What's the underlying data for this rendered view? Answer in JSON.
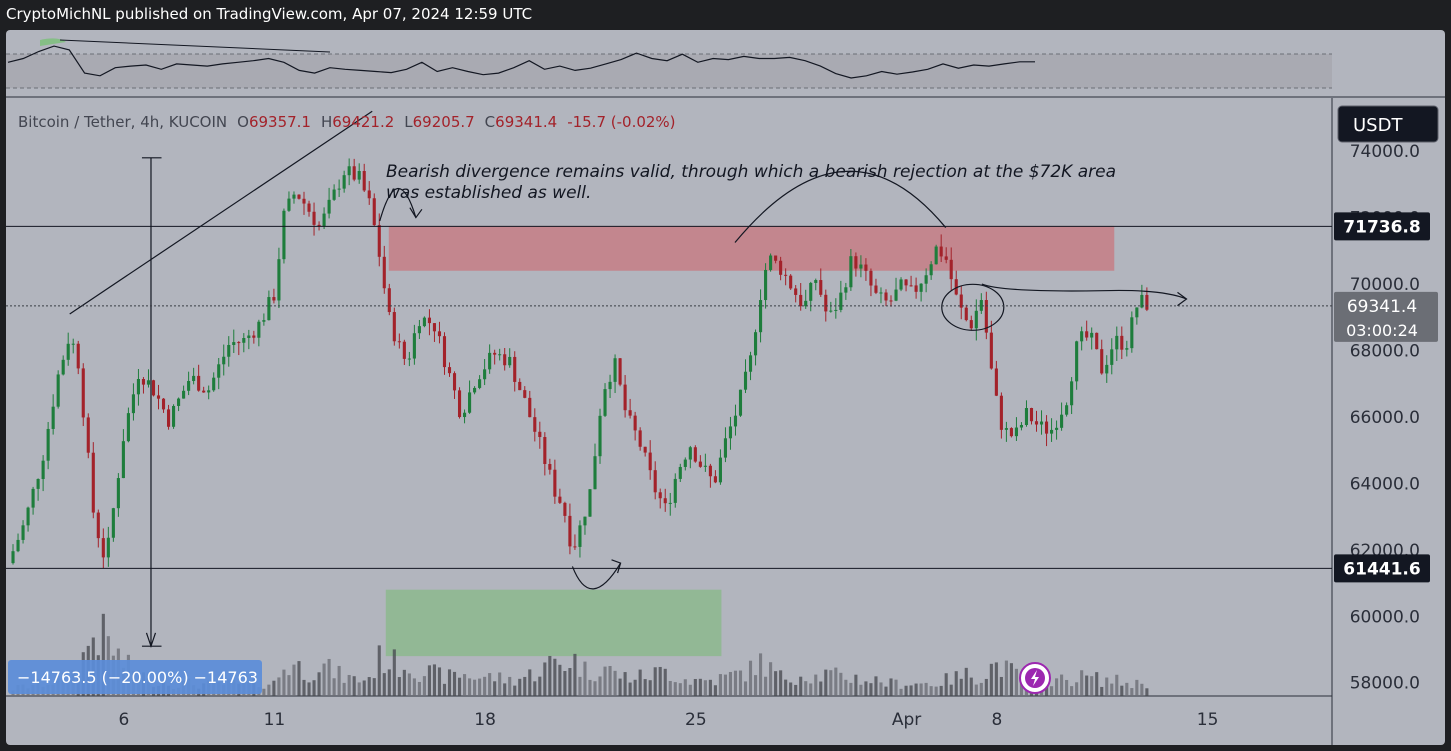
{
  "header": {
    "publish_info": "CryptoMichNL published on TradingView.com, Apr 07, 2024 12:59 UTC"
  },
  "legend": {
    "symbol": "Bitcoin / Tether, 4h, KUCOIN",
    "open_label": "O",
    "open": "69357.1",
    "high_label": "H",
    "high": "69421.2",
    "low_label": "L",
    "low": "69205.7",
    "close_label": "C",
    "close": "69341.4",
    "change": "-15.7 (-0.02%)"
  },
  "currency_button": "USDT",
  "annotation": "Bearish divergence remains valid, through which a bearish rejection at the $72K area was established as well.",
  "measure_label": "−14763.5 (−20.00%) −14763",
  "colors": {
    "background": "#b2b5be",
    "up": "#1e7d3c",
    "down": "#a3222a",
    "resistance_zone": "#c67e86",
    "support_zone": "#8cb88e",
    "label_bg": "#131722",
    "measure_bg": "#5b8dd9",
    "widget_icon": "#9c27b0"
  },
  "icons": {
    "widget": "lightning-icon"
  },
  "price_labels": {
    "resistance": "71736.8",
    "support": "61441.6",
    "last_price": "69341.4",
    "countdown": "03:00:24"
  },
  "chart_data": [
    {
      "type": "candlestick",
      "symbol": "Bitcoin / Tether",
      "interval": "4h",
      "exchange": "KUCOIN",
      "currency": "USDT",
      "y_ticks": [
        "58000.0",
        "60000.0",
        "62000.0",
        "64000.0",
        "66000.0",
        "68000.0",
        "70000.0",
        "72000.0",
        "74000.0"
      ],
      "x_ticks": [
        {
          "label": "6",
          "day": 6
        },
        {
          "label": "11",
          "day": 11
        },
        {
          "label": "18",
          "day": 18
        },
        {
          "label": "25",
          "day": 25
        },
        {
          "label": "Apr",
          "day": 32
        },
        {
          "label": "8",
          "day": 35
        },
        {
          "label": "15",
          "day": 42
        }
      ],
      "x_range": [
        2.15,
        46.0
      ],
      "y_range": [
        57600,
        75600
      ],
      "horizontal_levels": [
        {
          "label": "resistance",
          "price": 71736.8
        },
        {
          "label": "support",
          "price": 61441.6
        },
        {
          "label": "last_price",
          "price": 69341.4
        }
      ],
      "zones": [
        {
          "label": "resistance-zone",
          "day_from": 14.8,
          "day_to": 38.9,
          "price_from": 70400,
          "price_to": 71750
        },
        {
          "label": "support-zone",
          "day_from": 14.7,
          "day_to": 25.85,
          "price_from": 58800,
          "price_to": 60800
        }
      ],
      "path": [
        {
          "day": 2.15,
          "close": 61600,
          "vol": 0.1
        },
        {
          "day": 2.7,
          "close": 62800,
          "vol": 0.15
        },
        {
          "day": 3.3,
          "close": 64800,
          "vol": 0.2
        },
        {
          "day": 3.8,
          "close": 67200,
          "vol": 0.25
        },
        {
          "day": 4.2,
          "close": 68500,
          "vol": 0.3
        },
        {
          "day": 4.5,
          "close": 67600,
          "vol": 0.45
        },
        {
          "day": 5.0,
          "close": 63000,
          "vol": 1.0
        },
        {
          "day": 5.4,
          "close": 61600,
          "vol": 0.9
        },
        {
          "day": 6.0,
          "close": 65500,
          "vol": 0.5
        },
        {
          "day": 6.5,
          "close": 67400,
          "vol": 0.35
        },
        {
          "day": 7.0,
          "close": 66800,
          "vol": 0.25
        },
        {
          "day": 7.5,
          "close": 65900,
          "vol": 0.2
        },
        {
          "day": 8.2,
          "close": 67200,
          "vol": 0.2
        },
        {
          "day": 8.8,
          "close": 66800,
          "vol": 0.18
        },
        {
          "day": 9.5,
          "close": 68200,
          "vol": 0.2
        },
        {
          "day": 10.0,
          "close": 68300,
          "vol": 0.18
        },
        {
          "day": 10.5,
          "close": 68800,
          "vol": 0.2
        },
        {
          "day": 11.0,
          "close": 69700,
          "vol": 0.2
        },
        {
          "day": 11.3,
          "close": 72000,
          "vol": 0.45
        },
        {
          "day": 11.7,
          "close": 72800,
          "vol": 0.5
        },
        {
          "day": 12.1,
          "close": 72300,
          "vol": 0.35
        },
        {
          "day": 12.5,
          "close": 71700,
          "vol": 0.5
        },
        {
          "day": 12.9,
          "close": 72500,
          "vol": 0.4
        },
        {
          "day": 13.3,
          "close": 73400,
          "vol": 0.3
        },
        {
          "day": 13.8,
          "close": 73200,
          "vol": 0.25
        },
        {
          "day": 14.2,
          "close": 72300,
          "vol": 0.3
        },
        {
          "day": 14.5,
          "close": 70800,
          "vol": 0.6
        },
        {
          "day": 14.8,
          "close": 69000,
          "vol": 0.55
        },
        {
          "day": 15.1,
          "close": 68200,
          "vol": 0.5
        },
        {
          "day": 15.4,
          "close": 67600,
          "vol": 0.5
        },
        {
          "day": 15.8,
          "close": 69000,
          "vol": 0.4
        },
        {
          "day": 16.3,
          "close": 68800,
          "vol": 0.35
        },
        {
          "day": 16.8,
          "close": 67300,
          "vol": 0.3
        },
        {
          "day": 17.2,
          "close": 66100,
          "vol": 0.35
        },
        {
          "day": 17.7,
          "close": 67200,
          "vol": 0.3
        },
        {
          "day": 18.3,
          "close": 67900,
          "vol": 0.3
        },
        {
          "day": 18.8,
          "close": 67700,
          "vol": 0.25
        },
        {
          "day": 19.3,
          "close": 66500,
          "vol": 0.3
        },
        {
          "day": 19.8,
          "close": 65200,
          "vol": 0.4
        },
        {
          "day": 20.3,
          "close": 63800,
          "vol": 0.55
        },
        {
          "day": 20.6,
          "close": 63300,
          "vol": 0.5
        },
        {
          "day": 20.9,
          "close": 62000,
          "vol": 0.6
        },
        {
          "day": 21.2,
          "close": 62800,
          "vol": 0.45
        },
        {
          "day": 21.5,
          "close": 63800,
          "vol": 0.35
        },
        {
          "day": 21.9,
          "close": 66800,
          "vol": 0.5
        },
        {
          "day": 22.3,
          "close": 67600,
          "vol": 0.35
        },
        {
          "day": 22.7,
          "close": 66000,
          "vol": 0.3
        },
        {
          "day": 23.1,
          "close": 65300,
          "vol": 0.3
        },
        {
          "day": 23.6,
          "close": 63900,
          "vol": 0.35
        },
        {
          "day": 24.0,
          "close": 63200,
          "vol": 0.4
        },
        {
          "day": 24.4,
          "close": 64400,
          "vol": 0.3
        },
        {
          "day": 24.8,
          "close": 65200,
          "vol": 0.25
        },
        {
          "day": 25.2,
          "close": 64500,
          "vol": 0.25
        },
        {
          "day": 25.6,
          "close": 64000,
          "vol": 0.25
        },
        {
          "day": 26.0,
          "close": 65300,
          "vol": 0.3
        },
        {
          "day": 26.4,
          "close": 66300,
          "vol": 0.35
        },
        {
          "day": 26.8,
          "close": 67600,
          "vol": 0.4
        },
        {
          "day": 27.1,
          "close": 69500,
          "vol": 0.55
        },
        {
          "day": 27.4,
          "close": 70800,
          "vol": 0.45
        },
        {
          "day": 27.8,
          "close": 70500,
          "vol": 0.3
        },
        {
          "day": 28.2,
          "close": 69900,
          "vol": 0.3
        },
        {
          "day": 28.6,
          "close": 69300,
          "vol": 0.35
        },
        {
          "day": 29.0,
          "close": 70200,
          "vol": 0.3
        },
        {
          "day": 29.4,
          "close": 68900,
          "vol": 0.35
        },
        {
          "day": 29.8,
          "close": 69600,
          "vol": 0.3
        },
        {
          "day": 30.2,
          "close": 70800,
          "vol": 0.3
        },
        {
          "day": 30.6,
          "close": 70300,
          "vol": 0.25
        },
        {
          "day": 31.0,
          "close": 69600,
          "vol": 0.25
        },
        {
          "day": 31.4,
          "close": 69400,
          "vol": 0.2
        },
        {
          "day": 31.8,
          "close": 69900,
          "vol": 0.2
        },
        {
          "day": 32.2,
          "close": 69700,
          "vol": 0.2
        },
        {
          "day": 32.6,
          "close": 70300,
          "vol": 0.2
        },
        {
          "day": 33.0,
          "close": 71100,
          "vol": 0.2
        },
        {
          "day": 33.3,
          "close": 70800,
          "vol": 0.25
        },
        {
          "day": 33.7,
          "close": 69400,
          "vol": 0.3
        },
        {
          "day": 34.1,
          "close": 68700,
          "vol": 0.35
        },
        {
          "day": 34.5,
          "close": 69600,
          "vol": 0.3
        },
        {
          "day": 34.9,
          "close": 66800,
          "vol": 0.5
        },
        {
          "day": 35.2,
          "close": 65600,
          "vol": 0.45
        },
        {
          "day": 35.6,
          "close": 65400,
          "vol": 0.35
        },
        {
          "day": 36.0,
          "close": 66100,
          "vol": 0.3
        },
        {
          "day": 36.4,
          "close": 65700,
          "vol": 0.3
        },
        {
          "day": 36.8,
          "close": 65600,
          "vol": 0.25
        },
        {
          "day": 37.3,
          "close": 66500,
          "vol": 0.25
        },
        {
          "day": 37.7,
          "close": 68300,
          "vol": 0.3
        },
        {
          "day": 38.1,
          "close": 68400,
          "vol": 0.3
        },
        {
          "day": 38.5,
          "close": 67400,
          "vol": 0.25
        },
        {
          "day": 38.9,
          "close": 68300,
          "vol": 0.25
        },
        {
          "day": 39.3,
          "close": 68200,
          "vol": 0.2
        },
        {
          "day": 39.7,
          "close": 69500,
          "vol": 0.2
        },
        {
          "day": 40.0,
          "close": 69400,
          "vol": 0.2
        }
      ],
      "rsi": [
        0.55,
        0.62,
        0.75,
        0.85,
        0.78,
        0.35,
        0.3,
        0.45,
        0.48,
        0.5,
        0.42,
        0.52,
        0.5,
        0.48,
        0.52,
        0.55,
        0.58,
        0.62,
        0.55,
        0.4,
        0.35,
        0.45,
        0.42,
        0.4,
        0.38,
        0.36,
        0.42,
        0.55,
        0.38,
        0.45,
        0.38,
        0.32,
        0.35,
        0.45,
        0.58,
        0.42,
        0.48,
        0.4,
        0.44,
        0.52,
        0.6,
        0.72,
        0.62,
        0.58,
        0.7,
        0.55,
        0.62,
        0.6,
        0.66,
        0.62,
        0.62,
        0.64,
        0.58,
        0.48,
        0.34,
        0.26,
        0.3,
        0.38,
        0.33,
        0.37,
        0.42,
        0.52,
        0.44,
        0.5,
        0.48,
        0.52,
        0.56,
        0.56
      ]
    }
  ]
}
